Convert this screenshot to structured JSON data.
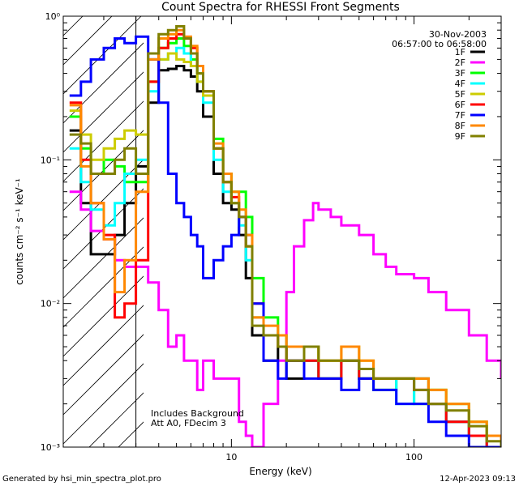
{
  "chart_data": {
    "type": "line",
    "title": "Count Spectra for RHESSI Front Segments",
    "xlabel": "Energy (keV)",
    "ylabel": "counts cm⁻² s⁻¹ keV⁻¹",
    "xscale": "log",
    "yscale": "log",
    "xlim": [
      1.2,
      300
    ],
    "ylim": [
      0.001,
      1.0
    ],
    "x_ticks": [
      {
        "value": 10,
        "label": "10"
      },
      {
        "value": 100,
        "label": "100"
      }
    ],
    "y_ticks": [
      {
        "value": 0.001,
        "label": "10⁻³"
      },
      {
        "value": 0.01,
        "label": "10⁻²"
      },
      {
        "value": 0.1,
        "label": "10⁻¹"
      },
      {
        "value": 1,
        "label": "10⁰"
      }
    ],
    "grid": false,
    "legend_position": "top-right",
    "date": "30-Nov-2003",
    "time_range": "06:57:00 to 06:58:00",
    "annotations": [
      "Includes Background",
      "Att A0, FDecim 3"
    ],
    "footer_left": "Generated by hsi_min_spectra_plot.pro",
    "footer_right": "12-Apr-2023 09:13",
    "hatched_region_below_keV": 3.0,
    "series": [
      {
        "name": "1F",
        "color": "#000000",
        "x": [
          1.3,
          1.5,
          1.7,
          2.0,
          2.3,
          2.6,
          3.0,
          3.5,
          4.0,
          4.5,
          5.0,
          5.5,
          6.0,
          6.5,
          7.0,
          8.0,
          9.0,
          10,
          11,
          12,
          13,
          15,
          18,
          20,
          25,
          30,
          40,
          50,
          60,
          80,
          100,
          120,
          150,
          200,
          250,
          300
        ],
        "y": [
          0.16,
          0.05,
          0.022,
          0.022,
          0.03,
          0.05,
          0.09,
          0.25,
          0.42,
          0.43,
          0.45,
          0.42,
          0.38,
          0.3,
          0.2,
          0.08,
          0.05,
          0.045,
          0.03,
          0.015,
          0.006,
          0.004,
          0.005,
          0.003,
          0.004,
          0.003,
          0.004,
          0.003,
          0.003,
          0.003,
          0.003,
          0.002,
          0.0015,
          0.0012,
          0.001,
          0.001
        ]
      },
      {
        "name": "2F",
        "color": "#ff00ff",
        "x": [
          1.3,
          1.5,
          1.7,
          2.0,
          2.3,
          2.6,
          3.0,
          3.5,
          4.0,
          4.5,
          5.0,
          5.5,
          6.0,
          6.5,
          7.0,
          8.0,
          9.0,
          10,
          11,
          12,
          13,
          15,
          18,
          20,
          22,
          25,
          28,
          30,
          35,
          40,
          50,
          60,
          70,
          80,
          100,
          120,
          150,
          200,
          250,
          300
        ],
        "y": [
          0.06,
          0.045,
          0.032,
          0.028,
          0.02,
          0.018,
          0.018,
          0.014,
          0.009,
          0.005,
          0.006,
          0.004,
          0.004,
          0.0025,
          0.004,
          0.003,
          0.003,
          0.003,
          0.0015,
          0.0012,
          0.001,
          0.002,
          0.004,
          0.012,
          0.025,
          0.038,
          0.05,
          0.045,
          0.04,
          0.035,
          0.03,
          0.022,
          0.018,
          0.016,
          0.015,
          0.012,
          0.009,
          0.006,
          0.004,
          0.003
        ]
      },
      {
        "name": "3F",
        "color": "#00ff00",
        "x": [
          1.3,
          1.5,
          1.7,
          2.0,
          2.3,
          2.6,
          3.0,
          3.5,
          4.0,
          4.5,
          5.0,
          5.5,
          6.0,
          6.5,
          7.0,
          8.0,
          9.0,
          10,
          11,
          12,
          13,
          15,
          18,
          20,
          25,
          30,
          40,
          50,
          60,
          80,
          100,
          120,
          150,
          200,
          250,
          300
        ],
        "y": [
          0.2,
          0.12,
          0.08,
          0.1,
          0.09,
          0.07,
          0.07,
          0.35,
          0.6,
          0.65,
          0.7,
          0.62,
          0.5,
          0.4,
          0.3,
          0.14,
          0.08,
          0.06,
          0.06,
          0.04,
          0.015,
          0.008,
          0.006,
          0.004,
          0.005,
          0.003,
          0.004,
          0.003,
          0.0025,
          0.003,
          0.002,
          0.0025,
          0.002,
          0.0015,
          0.0012,
          0.001
        ]
      },
      {
        "name": "4F",
        "color": "#00ffff",
        "x": [
          1.3,
          1.5,
          1.7,
          2.0,
          2.3,
          2.6,
          3.0,
          3.5,
          4.0,
          4.5,
          5.0,
          5.5,
          6.0,
          6.5,
          7.0,
          8.0,
          9.0,
          10,
          11,
          12,
          13,
          15,
          18,
          20,
          25,
          30,
          40,
          50,
          60,
          80,
          100,
          120,
          150,
          200,
          250,
          300
        ],
        "y": [
          0.12,
          0.07,
          0.045,
          0.035,
          0.05,
          0.08,
          0.1,
          0.3,
          0.5,
          0.55,
          0.6,
          0.55,
          0.45,
          0.35,
          0.25,
          0.1,
          0.06,
          0.05,
          0.035,
          0.02,
          0.008,
          0.006,
          0.005,
          0.004,
          0.004,
          0.003,
          0.004,
          0.003,
          0.003,
          0.002,
          0.003,
          0.002,
          0.0015,
          0.0012,
          0.001,
          0.001
        ]
      },
      {
        "name": "5F",
        "color": "#cccc00",
        "x": [
          1.3,
          1.5,
          1.7,
          2.0,
          2.3,
          2.6,
          3.0,
          3.5,
          4.0,
          4.5,
          5.0,
          5.5,
          6.0,
          6.5,
          7.0,
          8.0,
          9.0,
          10,
          11,
          12,
          13,
          15,
          18,
          20,
          25,
          30,
          40,
          50,
          60,
          80,
          100,
          120,
          150,
          200,
          250,
          300
        ],
        "y": [
          0.22,
          0.15,
          0.1,
          0.12,
          0.14,
          0.16,
          0.15,
          0.35,
          0.5,
          0.55,
          0.5,
          0.48,
          0.45,
          0.35,
          0.28,
          0.12,
          0.07,
          0.05,
          0.04,
          0.025,
          0.008,
          0.006,
          0.005,
          0.004,
          0.005,
          0.004,
          0.005,
          0.004,
          0.003,
          0.003,
          0.003,
          0.0025,
          0.002,
          0.0015,
          0.0012,
          0.001
        ]
      },
      {
        "name": "6F",
        "color": "#ff0000",
        "x": [
          1.3,
          1.5,
          1.7,
          2.0,
          2.3,
          2.6,
          3.0,
          3.5,
          4.0,
          4.5,
          5.0,
          5.5,
          6.0,
          6.5,
          7.0,
          8.0,
          9.0,
          10,
          11,
          12,
          13,
          15,
          18,
          20,
          25,
          30,
          40,
          50,
          60,
          80,
          100,
          120,
          150,
          200,
          250,
          300
        ],
        "y": [
          0.25,
          0.1,
          0.05,
          0.03,
          0.008,
          0.01,
          0.02,
          0.35,
          0.6,
          0.7,
          0.75,
          0.7,
          0.6,
          0.45,
          0.3,
          0.12,
          0.07,
          0.055,
          0.04,
          0.025,
          0.01,
          0.006,
          0.005,
          0.004,
          0.004,
          0.003,
          0.004,
          0.003,
          0.003,
          0.003,
          0.0025,
          0.002,
          0.0015,
          0.0012,
          0.001,
          0.001
        ]
      },
      {
        "name": "7F",
        "color": "#0000ff",
        "x": [
          1.3,
          1.5,
          1.7,
          2.0,
          2.3,
          2.6,
          3.0,
          3.5,
          4.0,
          4.5,
          5.0,
          5.5,
          6.0,
          6.5,
          7.0,
          8.0,
          9.0,
          10,
          11,
          12,
          13,
          15,
          18,
          20,
          25,
          30,
          40,
          50,
          60,
          80,
          100,
          120,
          150,
          200,
          250,
          300
        ],
        "y": [
          0.28,
          0.35,
          0.5,
          0.6,
          0.7,
          0.65,
          0.72,
          0.5,
          0.25,
          0.08,
          0.05,
          0.04,
          0.03,
          0.025,
          0.015,
          0.02,
          0.025,
          0.03,
          0.04,
          0.03,
          0.01,
          0.004,
          0.003,
          0.004,
          0.003,
          0.003,
          0.0025,
          0.003,
          0.0025,
          0.002,
          0.002,
          0.0015,
          0.0012,
          0.001,
          0.001,
          0.001
        ]
      },
      {
        "name": "8F",
        "color": "#ff8800",
        "x": [
          1.3,
          1.5,
          1.7,
          2.0,
          2.3,
          2.6,
          3.0,
          3.5,
          4.0,
          4.5,
          5.0,
          5.5,
          6.0,
          6.5,
          7.0,
          8.0,
          9.0,
          10,
          11,
          12,
          13,
          15,
          18,
          20,
          25,
          30,
          40,
          50,
          60,
          80,
          100,
          120,
          150,
          200,
          250,
          300
        ],
        "y": [
          0.24,
          0.09,
          0.05,
          0.028,
          0.012,
          0.02,
          0.06,
          0.5,
          0.7,
          0.75,
          0.8,
          0.72,
          0.62,
          0.45,
          0.3,
          0.13,
          0.08,
          0.06,
          0.045,
          0.03,
          0.008,
          0.007,
          0.006,
          0.005,
          0.005,
          0.004,
          0.005,
          0.004,
          0.003,
          0.003,
          0.003,
          0.0025,
          0.002,
          0.0015,
          0.0012,
          0.001
        ]
      },
      {
        "name": "9F",
        "color": "#808000",
        "x": [
          1.3,
          1.5,
          1.7,
          2.0,
          2.3,
          2.6,
          3.0,
          3.5,
          4.0,
          4.5,
          5.0,
          5.5,
          6.0,
          6.5,
          7.0,
          8.0,
          9.0,
          10,
          11,
          12,
          13,
          15,
          18,
          20,
          25,
          30,
          40,
          50,
          60,
          80,
          100,
          120,
          150,
          200,
          250,
          300
        ],
        "y": [
          0.15,
          0.13,
          0.08,
          0.08,
          0.1,
          0.12,
          0.08,
          0.55,
          0.75,
          0.8,
          0.85,
          0.7,
          0.55,
          0.4,
          0.3,
          0.12,
          0.07,
          0.05,
          0.04,
          0.025,
          0.007,
          0.006,
          0.005,
          0.004,
          0.005,
          0.004,
          0.004,
          0.0035,
          0.003,
          0.003,
          0.0025,
          0.002,
          0.0018,
          0.0014,
          0.0011,
          0.001
        ]
      }
    ]
  }
}
